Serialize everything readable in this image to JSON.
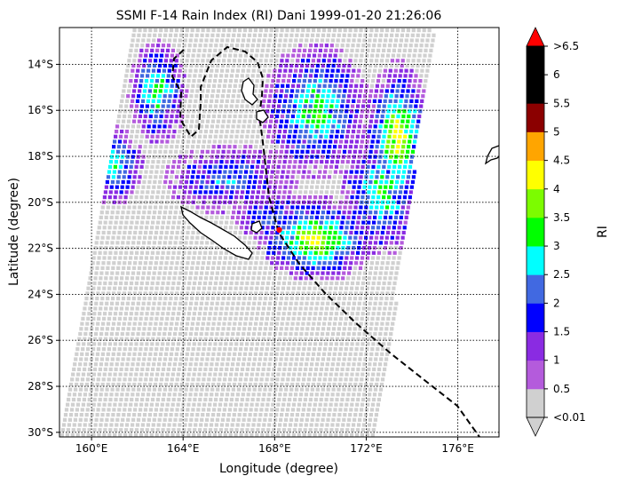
{
  "chart_data": {
    "type": "heatmap",
    "title": "SSMI F-14 Rain Index (RI) Dani 1999-01-20 21:26:06",
    "xlabel": "Longitude (degree)",
    "ylabel": "Latitude (degree)",
    "xlim": [
      158.6,
      177.8
    ],
    "ylim": [
      -30.2,
      -12.4
    ],
    "x_ticks": [
      160,
      164,
      168,
      172,
      176
    ],
    "x_tick_labels": [
      "160°E",
      "164°E",
      "168°E",
      "172°E",
      "176°E"
    ],
    "y_ticks": [
      -14,
      -16,
      -18,
      -20,
      -22,
      -24,
      -26,
      -28,
      -30
    ],
    "y_tick_labels": [
      "14°S",
      "16°S",
      "18°S",
      "20°S",
      "22°S",
      "24°S",
      "26°S",
      "28°S",
      "30°S"
    ],
    "grid": true,
    "colorbar": {
      "label": "RI",
      "tick_labels": [
        "<0.01",
        "0.5",
        "1",
        "1.5",
        "2",
        "2.5",
        "3",
        "3.5",
        "4",
        "4.5",
        "5",
        "5.5",
        "6",
        ">6.5"
      ],
      "colors": [
        "#d0d0d0",
        "#b45bdc",
        "#8a2be2",
        "#0000ff",
        "#4169e1",
        "#00ffff",
        "#00ff00",
        "#7cfc00",
        "#ffff00",
        "#ffa500",
        "#8b0000",
        "#000000",
        "#000000",
        "#ff0000"
      ]
    },
    "storm_center": {
      "lon": 168.2,
      "lat": -21.2,
      "color": "#ff0000"
    },
    "swath": {
      "corners": [
        [
          161.8,
          -12.4
        ],
        [
          175.0,
          -12.4
        ],
        [
          172.5,
          -30.2
        ],
        [
          158.6,
          -30.2
        ]
      ]
    },
    "rain_regions": [
      {
        "lon": 169.8,
        "lat": -16.0,
        "rlon": 1.3,
        "rlat": 1.6,
        "level": 3
      },
      {
        "lon": 173.4,
        "lat": -17.2,
        "rlon": 0.8,
        "rlat": 1.8,
        "level": 4
      },
      {
        "lon": 172.7,
        "lat": -19.5,
        "rlon": 1.0,
        "rlat": 1.5,
        "level": 3
      },
      {
        "lon": 169.8,
        "lat": -21.6,
        "rlon": 1.4,
        "rlat": 1.0,
        "level": 4
      },
      {
        "lon": 162.9,
        "lat": -15.2,
        "rlon": 0.7,
        "rlat": 1.2,
        "level": 3
      },
      {
        "lon": 161.0,
        "lat": -18.4,
        "rlon": 0.7,
        "rlat": 0.9,
        "level": 3
      },
      {
        "lon": 166.0,
        "lat": -19.0,
        "rlon": 1.6,
        "rlat": 0.8,
        "level": 2
      },
      {
        "lon": 168.0,
        "lat": -20.6,
        "rlon": 1.0,
        "rlat": 0.6,
        "level": 2
      }
    ]
  }
}
